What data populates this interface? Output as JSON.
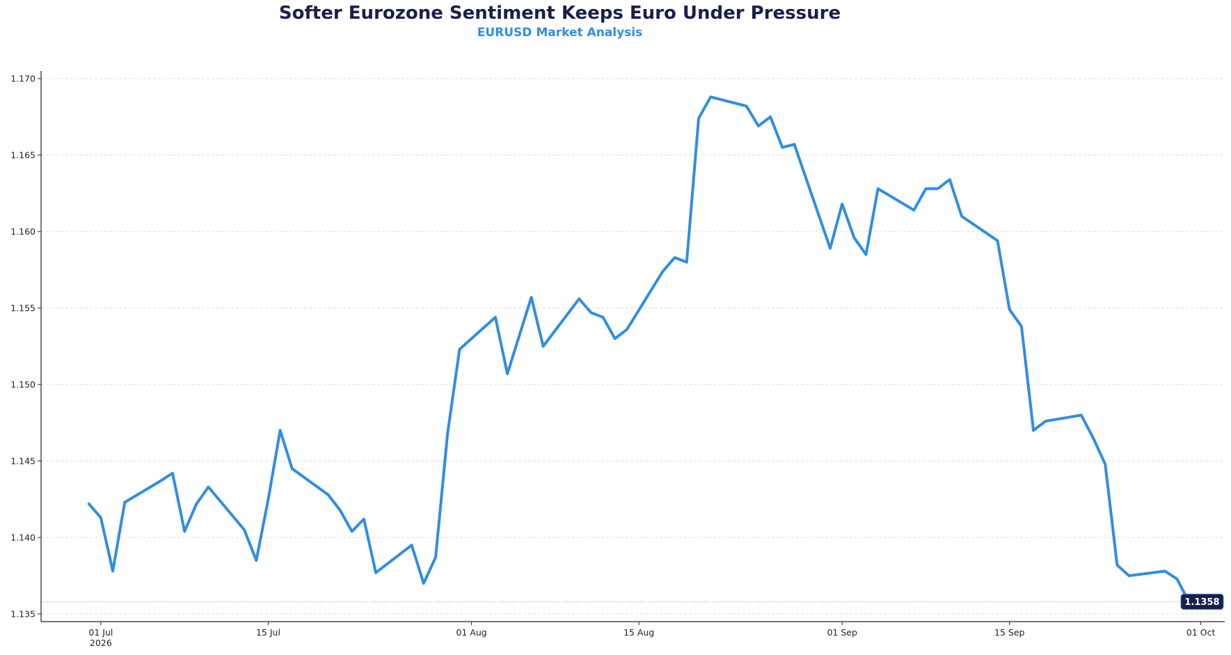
{
  "chart_data": {
    "type": "line",
    "title": "Softer Eurozone Sentiment Keeps Euro Under Pressure",
    "subtitle": "EURUSD Market Analysis",
    "xlabel": "",
    "ylabel": "",
    "ylim": [
      1.1345,
      1.1705
    ],
    "xlim": [
      "2026-06-26",
      "2026-10-03"
    ],
    "y_ticks": [
      "1.135",
      "1.140",
      "1.145",
      "1.150",
      "1.155",
      "1.160",
      "1.165",
      "1.170"
    ],
    "x_ticks": [
      {
        "date": "2026-07-01",
        "label": "01 Jul",
        "sublabel": "2026"
      },
      {
        "date": "2026-07-15",
        "label": "15 Jul",
        "sublabel": ""
      },
      {
        "date": "2026-08-01",
        "label": "01 Aug",
        "sublabel": ""
      },
      {
        "date": "2026-08-15",
        "label": "15 Aug",
        "sublabel": ""
      },
      {
        "date": "2026-09-01",
        "label": "01 Sep",
        "sublabel": ""
      },
      {
        "date": "2026-09-15",
        "label": "15 Sep",
        "sublabel": ""
      },
      {
        "date": "2026-10-01",
        "label": "01 Oct",
        "sublabel": ""
      }
    ],
    "grid": true,
    "line_color": "#2f8de4",
    "last_value_label": "1.1358",
    "last_label_color": "#1b1f4b",
    "series": [
      {
        "x": [
          "2026-06-30",
          "2026-07-01",
          "2026-07-02",
          "2026-07-03",
          "2026-07-06",
          "2026-07-07",
          "2026-07-08",
          "2026-07-09",
          "2026-07-10",
          "2026-07-13",
          "2026-07-14",
          "2026-07-15",
          "2026-07-16",
          "2026-07-17",
          "2026-07-20",
          "2026-07-21",
          "2026-07-22",
          "2026-07-23",
          "2026-07-24",
          "2026-07-27",
          "2026-07-28",
          "2026-07-29",
          "2026-07-30",
          "2026-07-31",
          "2026-08-03",
          "2026-08-04",
          "2026-08-05",
          "2026-08-06",
          "2026-08-07",
          "2026-08-10",
          "2026-08-11",
          "2026-08-12",
          "2026-08-13",
          "2026-08-14",
          "2026-08-17",
          "2026-08-18",
          "2026-08-19",
          "2026-08-20",
          "2026-08-21",
          "2026-08-24",
          "2026-08-25",
          "2026-08-26",
          "2026-08-27",
          "2026-08-28",
          "2026-08-31",
          "2026-09-01",
          "2026-09-02",
          "2026-09-03",
          "2026-09-04",
          "2026-09-07",
          "2026-09-08",
          "2026-09-09",
          "2026-09-10",
          "2026-09-11",
          "2026-09-14",
          "2026-09-15",
          "2026-09-16",
          "2026-09-17",
          "2026-09-18",
          "2026-09-21",
          "2026-09-22",
          "2026-09-23",
          "2026-09-24",
          "2026-09-25",
          "2026-09-28",
          "2026-09-29",
          "2026-09-30"
        ],
        "values": [
          1.1422,
          1.1413,
          1.1378,
          1.1423,
          1.1437,
          1.1442,
          1.1404,
          1.1422,
          1.1433,
          1.1405,
          1.1385,
          1.1425,
          1.147,
          1.1445,
          1.1428,
          1.1418,
          1.1404,
          1.1412,
          1.1377,
          1.1395,
          1.137,
          1.1387,
          1.1468,
          1.1523,
          1.1544,
          1.1507,
          1.1532,
          1.1557,
          1.1525,
          1.1556,
          1.1547,
          1.1544,
          1.153,
          1.1536,
          1.1574,
          1.1583,
          1.158,
          1.1674,
          1.1688,
          1.1682,
          1.1669,
          1.1675,
          1.1655,
          1.1657,
          1.1589,
          1.1618,
          1.1596,
          1.1585,
          1.1628,
          1.1614,
          1.1628,
          1.1628,
          1.1634,
          1.161,
          1.1594,
          1.1549,
          1.1538,
          1.147,
          1.1476,
          1.148,
          1.1465,
          1.1448,
          1.1382,
          1.1375,
          1.1378,
          1.1373,
          1.1358
        ]
      }
    ]
  }
}
